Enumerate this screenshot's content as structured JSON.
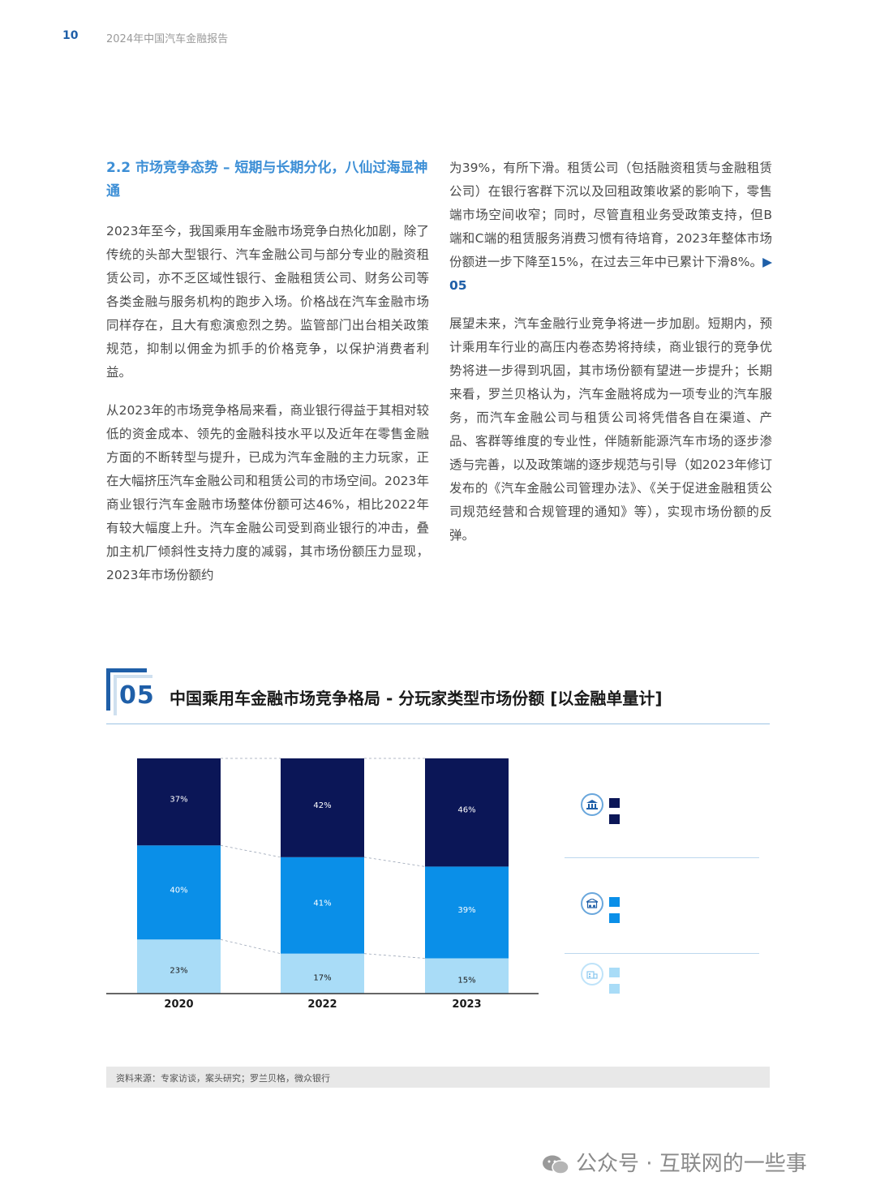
{
  "header": {
    "page_number": "10",
    "running_title": "2024年中国汽车金融报告"
  },
  "section": {
    "heading": "2.2 市场竞争态势 – 短期与长期分化，八仙过海显神通",
    "left_paragraphs": [
      "2023年至今，我国乘用车金融市场竞争白热化加剧，除了传统的头部大型银行、汽车金融公司与部分专业的融资租赁公司，亦不乏区域性银行、金融租赁公司、财务公司等各类金融与服务机构的跑步入场。价格战在汽车金融市场同样存在，且大有愈演愈烈之势。监管部门出台相关政策规范，抑制以佣金为抓手的价格竞争，以保护消费者利益。",
      "从2023年的市场竞争格局来看，商业银行得益于其相对较低的资金成本、领先的金融科技水平以及近年在零售金融方面的不断转型与提升，已成为汽车金融的主力玩家，正在大幅挤压汽车金融公司和租赁公司的市场空间。2023年商业银行汽车金融市场整体份额可达46%，相比2022年有较大幅度上升。汽车金融公司受到商业银行的冲击，叠加主机厂倾斜性支持力度的减弱，其市场份额压力显现，2023年市场份额约"
    ],
    "right_paragraph_1": "为39%，有所下滑。租赁公司（包括融资租赁与金融租赁公司）在银行客群下沉以及回租政策收紧的影响下，零售端市场空间收窄；同时，尽管直租业务受政策支持，但B端和C端的租赁服务消费习惯有待培育，2023年整体市场份额进一步下降至15%，在过去三年中已累计下滑8%。",
    "right_paragraph_1_ref": "▶ 05",
    "right_paragraph_2": "展望未来，汽车金融行业竞争将进一步加剧。短期内，预计乘用车行业的高压内卷态势将持续，商业银行的竞争优势将进一步得到巩固，其市场份额有望进一步提升；长期来看，罗兰贝格认为，汽车金融将成为一项专业的汽车服务，而汽车金融公司与租赁公司将凭借各自在渠道、产品、客群等维度的专业性，伴随新能源汽车市场的逐步渗透与完善，以及政策端的逐步规范与引导（如2023年修订发布的《汽车金融公司管理办法》、《关于促进金融租赁公司规范经营和合规管理的通知》等），实现市场份额的反弹。"
  },
  "figure": {
    "number": "05",
    "title": "中国乘用车金融市场竞争格局 - 分玩家类型市场份额 [以金融单量计]",
    "legend": [
      {
        "icon": "bank-icon",
        "color": "#0b1657"
      },
      {
        "icon": "auto-finance-company-icon",
        "color": "#0a8fe8"
      },
      {
        "icon": "leasing-company-icon",
        "color": "#a9dcf7"
      }
    ],
    "source": "资料来源：专家访谈，案头研究；罗兰贝格，微众银行"
  },
  "chart_data": {
    "type": "bar",
    "stacked": true,
    "categories": [
      "2020",
      "2022",
      "2023"
    ],
    "series": [
      {
        "values": [
          23,
          17,
          15
        ],
        "labels": [
          "23%",
          "17%",
          "15%"
        ],
        "color": "#a9dcf7"
      },
      {
        "values": [
          40,
          41,
          39
        ],
        "labels": [
          "40%",
          "41%",
          "39%"
        ],
        "color": "#0a8fe8"
      },
      {
        "values": [
          37,
          42,
          46
        ],
        "labels": [
          "37%",
          "42%",
          "46%"
        ],
        "color": "#0b1657"
      }
    ],
    "ylim": [
      0,
      100
    ],
    "grid": false
  },
  "watermark": "公众号 · 互联网的一些事"
}
